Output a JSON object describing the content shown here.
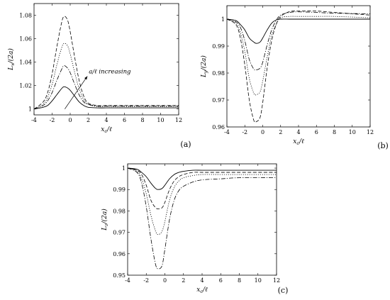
{
  "chart_data": [
    {
      "type": "line",
      "panel_label": "(a)",
      "xlabel": "x_c/ℓ",
      "ylabel": "L_x/(2a)",
      "xlim": [
        -4,
        12
      ],
      "ylim": [
        0.995,
        1.09
      ],
      "xticks": [
        -4,
        -2,
        0,
        2,
        4,
        6,
        8,
        10,
        12
      ],
      "yticks": [
        1,
        1.02,
        1.04,
        1.06,
        1.08
      ],
      "ytick_labels": [
        "1",
        "1.02",
        "1.04",
        "1.06",
        "1.08"
      ],
      "grid": false,
      "annotation": {
        "text": "a/ℓ increasing",
        "arrow_from": [
          -0.6,
          1.0
        ],
        "arrow_to": [
          1.9,
          1.028
        ]
      },
      "series": [
        {
          "style": "solid",
          "x": [
            -4,
            -3,
            -2.5,
            -2,
            -1.5,
            -1,
            -0.7,
            -0.3,
            0,
            0.5,
            1,
            1.5,
            2,
            3,
            4,
            6,
            8,
            12
          ],
          "y": [
            1.0,
            1.0015,
            1.003,
            1.007,
            1.012,
            1.017,
            1.019,
            1.018,
            1.016,
            1.011,
            1.006,
            1.003,
            1.0015,
            1.001,
            1.001,
            1.001,
            1.001,
            1.001
          ]
        },
        {
          "style": "dashdot",
          "x": [
            -4,
            -3,
            -2.5,
            -2,
            -1.5,
            -1,
            -0.7,
            -0.3,
            0,
            0.5,
            1,
            1.5,
            2,
            3,
            4,
            6,
            8,
            12
          ],
          "y": [
            1.0,
            1.003,
            1.007,
            1.014,
            1.024,
            1.033,
            1.037,
            1.035,
            1.031,
            1.021,
            1.012,
            1.006,
            1.004,
            1.0025,
            1.0025,
            1.0025,
            1.0025,
            1.0025
          ]
        },
        {
          "style": "dotted",
          "x": [
            -4,
            -3,
            -2.5,
            -2,
            -1.5,
            -1,
            -0.7,
            -0.3,
            0,
            0.5,
            1,
            1.5,
            2,
            3,
            4,
            6,
            8,
            12
          ],
          "y": [
            1.0,
            1.004,
            1.01,
            1.021,
            1.037,
            1.051,
            1.056,
            1.054,
            1.047,
            1.031,
            1.017,
            1.008,
            1.004,
            1.002,
            1.002,
            1.002,
            1.002,
            1.002
          ]
        },
        {
          "style": "dashed",
          "x": [
            -4,
            -3,
            -2.5,
            -2,
            -1.5,
            -1,
            -0.7,
            -0.3,
            0,
            0.5,
            1,
            1.5,
            2,
            3,
            4,
            6,
            8,
            12
          ],
          "y": [
            1.0,
            1.006,
            1.014,
            1.03,
            1.052,
            1.072,
            1.079,
            1.076,
            1.066,
            1.044,
            1.024,
            1.011,
            1.005,
            1.003,
            1.003,
            1.003,
            1.003,
            1.003
          ]
        }
      ]
    },
    {
      "type": "line",
      "panel_label": "(b)",
      "xlabel": "x_c/ℓ",
      "ylabel": "L_y/(2a)",
      "xlim": [
        -4,
        12
      ],
      "ylim": [
        0.96,
        1.005
      ],
      "xticks": [
        -4,
        -2,
        0,
        2,
        4,
        6,
        8,
        10,
        12
      ],
      "yticks": [
        0.96,
        0.97,
        0.98,
        0.99,
        1
      ],
      "ytick_labels": [
        "0.96",
        "0.97",
        "0.98",
        "0.99",
        "1"
      ],
      "grid": false,
      "series": [
        {
          "style": "solid",
          "x": [
            -4,
            -3,
            -2.5,
            -2,
            -1.5,
            -1,
            -0.7,
            -0.3,
            0,
            0.5,
            1,
            1.5,
            2,
            3,
            4,
            6,
            8,
            12
          ],
          "y": [
            1.0,
            0.9995,
            0.998,
            0.996,
            0.993,
            0.9915,
            0.991,
            0.9915,
            0.993,
            0.996,
            0.9985,
            0.9997,
            1.0,
            1.0,
            1.0,
            1.0,
            1.0,
            1.0
          ]
        },
        {
          "style": "dashdot",
          "x": [
            -4,
            -3,
            -2.5,
            -2,
            -1.5,
            -1,
            -0.7,
            -0.3,
            0,
            0.5,
            1,
            1.5,
            2,
            3,
            4,
            6,
            8,
            12
          ],
          "y": [
            1.0,
            0.999,
            0.997,
            0.992,
            0.985,
            0.9815,
            0.9812,
            0.9818,
            0.984,
            0.9905,
            0.996,
            0.9995,
            1.0015,
            1.0025,
            1.0027,
            1.0025,
            1.0022,
            1.002
          ]
        },
        {
          "style": "dotted",
          "x": [
            -4,
            -3,
            -2.5,
            -2,
            -1.5,
            -1,
            -0.7,
            -0.3,
            0,
            0.5,
            1,
            1.5,
            2,
            3,
            4,
            6,
            8,
            12
          ],
          "y": [
            1.0,
            0.9985,
            0.995,
            0.988,
            0.978,
            0.9725,
            0.972,
            0.973,
            0.977,
            0.986,
            0.994,
            0.998,
            1.0005,
            1.001,
            1.001,
            1.001,
            1.001,
            1.0005
          ]
        },
        {
          "style": "dashed",
          "x": [
            -4,
            -3,
            -2.5,
            -2,
            -1.5,
            -1,
            -0.7,
            -0.3,
            0,
            0.5,
            1,
            1.5,
            2,
            3,
            4,
            6,
            8,
            12
          ],
          "y": [
            1.0,
            0.998,
            0.993,
            0.983,
            0.97,
            0.9625,
            0.962,
            0.9635,
            0.969,
            0.982,
            0.992,
            0.998,
            1.001,
            1.0028,
            1.003,
            1.003,
            1.0025,
            1.0015
          ]
        }
      ]
    },
    {
      "type": "line",
      "panel_label": "(c)",
      "xlabel": "x_c/ℓ",
      "ylabel": "L_z/(2a)",
      "xlim": [
        -4,
        12
      ],
      "ylim": [
        0.95,
        1.002
      ],
      "xticks": [
        -4,
        -2,
        0,
        2,
        4,
        6,
        8,
        10,
        12
      ],
      "yticks": [
        0.95,
        0.96,
        0.97,
        0.98,
        0.99,
        1
      ],
      "ytick_labels": [
        "0.95",
        "0.96",
        "0.97",
        "0.98",
        "0.99",
        "1"
      ],
      "grid": false,
      "series": [
        {
          "style": "solid",
          "x": [
            -4,
            -3,
            -2.5,
            -2,
            -1.5,
            -1,
            -0.7,
            -0.3,
            0,
            0.5,
            1,
            1.5,
            2,
            3,
            4,
            6,
            8,
            12
          ],
          "y": [
            1.0,
            0.9995,
            0.998,
            0.996,
            0.993,
            0.9905,
            0.99,
            0.9905,
            0.992,
            0.995,
            0.997,
            0.998,
            0.9985,
            0.999,
            0.999,
            0.999,
            0.999,
            0.999
          ]
        },
        {
          "style": "dashed",
          "x": [
            -4,
            -3,
            -2.5,
            -2,
            -1.5,
            -1,
            -0.7,
            -0.3,
            0,
            0.5,
            1,
            1.5,
            2,
            3,
            4,
            6,
            8,
            12
          ],
          "y": [
            1.0,
            0.999,
            0.997,
            0.992,
            0.985,
            0.9815,
            0.981,
            0.9815,
            0.984,
            0.99,
            0.994,
            0.996,
            0.997,
            0.998,
            0.998,
            0.998,
            0.998,
            0.998
          ]
        },
        {
          "style": "dotted",
          "x": [
            -4,
            -3,
            -2.5,
            -2,
            -1.5,
            -1,
            -0.7,
            -0.3,
            0,
            0.5,
            1,
            1.5,
            2,
            3,
            4,
            6,
            8,
            12
          ],
          "y": [
            1.0,
            0.9985,
            0.995,
            0.988,
            0.978,
            0.9705,
            0.969,
            0.9705,
            0.975,
            0.985,
            0.991,
            0.994,
            0.9955,
            0.9965,
            0.997,
            0.997,
            0.997,
            0.997
          ]
        },
        {
          "style": "dashdot",
          "x": [
            -4,
            -3,
            -2.5,
            -2,
            -1.5,
            -1,
            -0.7,
            -0.3,
            0,
            0.5,
            1,
            1.5,
            2,
            3,
            4,
            6,
            8,
            12
          ],
          "y": [
            1.0,
            0.998,
            0.993,
            0.982,
            0.967,
            0.955,
            0.953,
            0.9545,
            0.962,
            0.976,
            0.985,
            0.9895,
            0.9915,
            0.9935,
            0.9945,
            0.995,
            0.9955,
            0.9955
          ]
        }
      ]
    }
  ]
}
